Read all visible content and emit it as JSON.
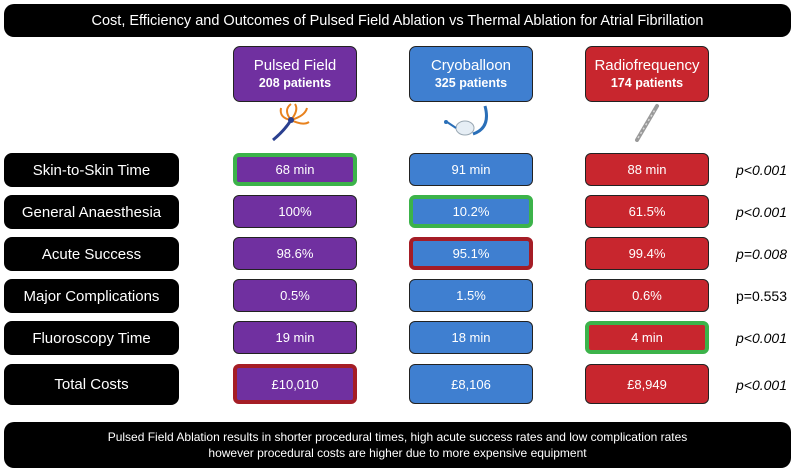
{
  "title": "Cost, Efficiency and Outcomes of Pulsed Field Ablation vs Thermal Ablation for Atrial Fibrillation",
  "groups": [
    {
      "name": "Pulsed Field",
      "patients": "208 patients",
      "color": "#7030a0",
      "device_icon": "pulsed-field-catheter-icon"
    },
    {
      "name": "Cryoballoon",
      "patients": "325 patients",
      "color": "#3f7fd0",
      "device_icon": "cryoballoon-catheter-icon"
    },
    {
      "name": "Radiofrequency",
      "patients": "174 patients",
      "color": "#c8262e",
      "device_icon": "radiofrequency-catheter-icon"
    }
  ],
  "rows": [
    {
      "label": "Skin-to-Skin Time",
      "values": [
        "68 min",
        "91 min",
        "88 min"
      ],
      "p": "p<0.001",
      "best": "green:0"
    },
    {
      "label": "General Anaesthesia",
      "values": [
        "100%",
        "10.2%",
        "61.5%"
      ],
      "p": "p<0.001",
      "best": "green:1"
    },
    {
      "label": "Acute Success",
      "values": [
        "98.6%",
        "95.1%",
        "99.4%"
      ],
      "p": "p=0.008",
      "best": "red:1"
    },
    {
      "label": "Major Complications",
      "values": [
        "0.5%",
        "1.5%",
        "0.6%"
      ],
      "p": "p=0.553",
      "best": "none"
    },
    {
      "label": "Fluoroscopy Time",
      "values": [
        "19 min",
        "18 min",
        "4 min"
      ],
      "p": "p<0.001",
      "best": "green:2"
    },
    {
      "label": "Total Costs",
      "values": [
        "£10,010",
        "£8,106",
        "£8,949"
      ],
      "p": "p<0.001",
      "best": "red:0"
    }
  ],
  "conclusion": {
    "line1": "Pulsed Field Ablation results in shorter procedural times, high acute success rates and low complication rates",
    "line2": "however procedural costs are higher due to more expensive equipment"
  },
  "highlight_colors": {
    "best": "#3cb34a",
    "worst": "#a51d26"
  }
}
